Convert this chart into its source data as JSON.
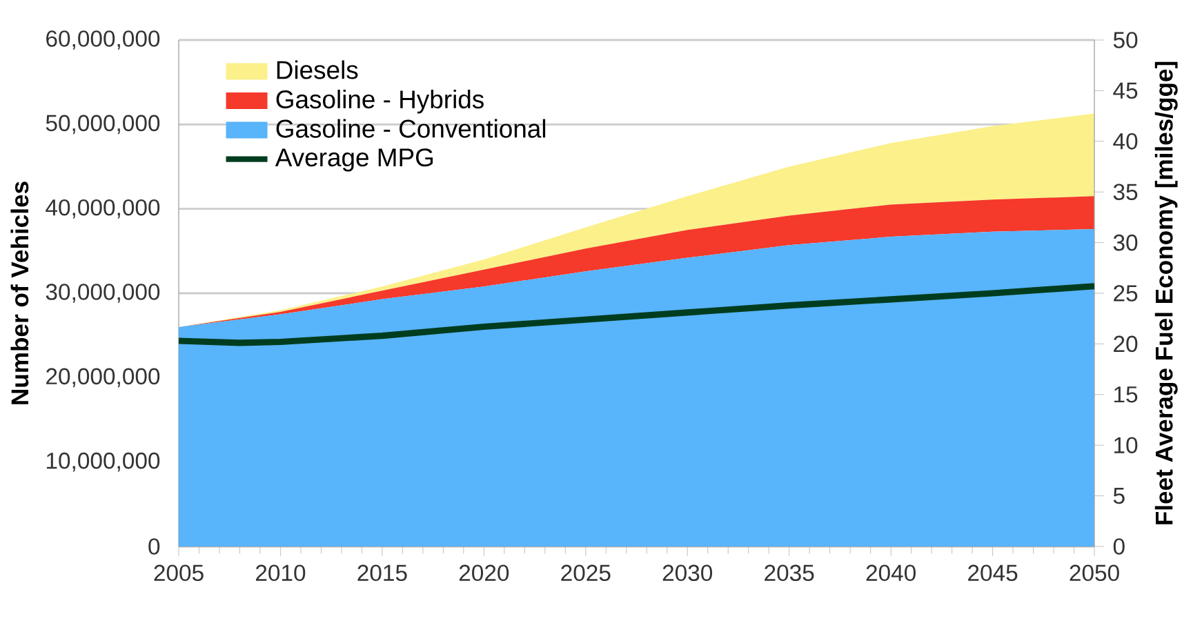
{
  "chart_data": {
    "type": "area",
    "stacked": true,
    "ylabel": "Number of Vehicles",
    "y2label": "Fleet Average Fuel Economy [miles/gge]",
    "x": [
      2005,
      2010,
      2015,
      2020,
      2025,
      2030,
      2035,
      2040,
      2045,
      2050
    ],
    "series": [
      {
        "name": "Gasoline - Conventional",
        "color": "#58b4fb",
        "values": [
          26000000,
          27500000,
          29300000,
          30800000,
          32600000,
          34200000,
          35700000,
          36700000,
          37300000,
          37600000
        ]
      },
      {
        "name": "Gasoline - Hybrids",
        "color": "#f5392a",
        "values": [
          0,
          300000,
          1000000,
          2000000,
          2700000,
          3300000,
          3500000,
          3800000,
          3800000,
          3900000
        ]
      },
      {
        "name": "Diesels",
        "color": "#fbf08a",
        "values": [
          0,
          200000,
          500000,
          1200000,
          2500000,
          4000000,
          5800000,
          7300000,
          8700000,
          9800000
        ]
      },
      {
        "name": "Average MPG",
        "type": "line",
        "axis": "y2",
        "color": "#003d1f",
        "line_style": "solid",
        "x": [
          2005,
          2008,
          2010,
          2015,
          2020,
          2025,
          2030,
          2035,
          2040,
          2045,
          2050
        ],
        "values": [
          20.3,
          20.1,
          20.2,
          20.8,
          21.7,
          22.4,
          23.1,
          23.8,
          24.4,
          25.0,
          25.7
        ]
      }
    ],
    "xlim": [
      2005,
      2050
    ],
    "xticks": [
      2005,
      2010,
      2015,
      2020,
      2025,
      2030,
      2035,
      2040,
      2045,
      2050
    ],
    "ylim": [
      0,
      60000000
    ],
    "yticks": [
      0,
      {
        "value": 10000000,
        "label": "10,000,000"
      },
      {
        "value": 20000000,
        "label": "20,000,000"
      },
      {
        "value": 30000000,
        "label": "30,000,000"
      },
      {
        "value": 40000000,
        "label": "40,000,000"
      },
      {
        "value": 50000000,
        "label": "50,000,000"
      },
      {
        "value": 60000000,
        "label": "60,000,000"
      }
    ],
    "y2lim": [
      0,
      50
    ],
    "y2ticks": [
      0,
      5,
      10,
      15,
      20,
      25,
      30,
      35,
      40,
      45,
      50
    ],
    "grid": "y",
    "legend": "top left"
  }
}
